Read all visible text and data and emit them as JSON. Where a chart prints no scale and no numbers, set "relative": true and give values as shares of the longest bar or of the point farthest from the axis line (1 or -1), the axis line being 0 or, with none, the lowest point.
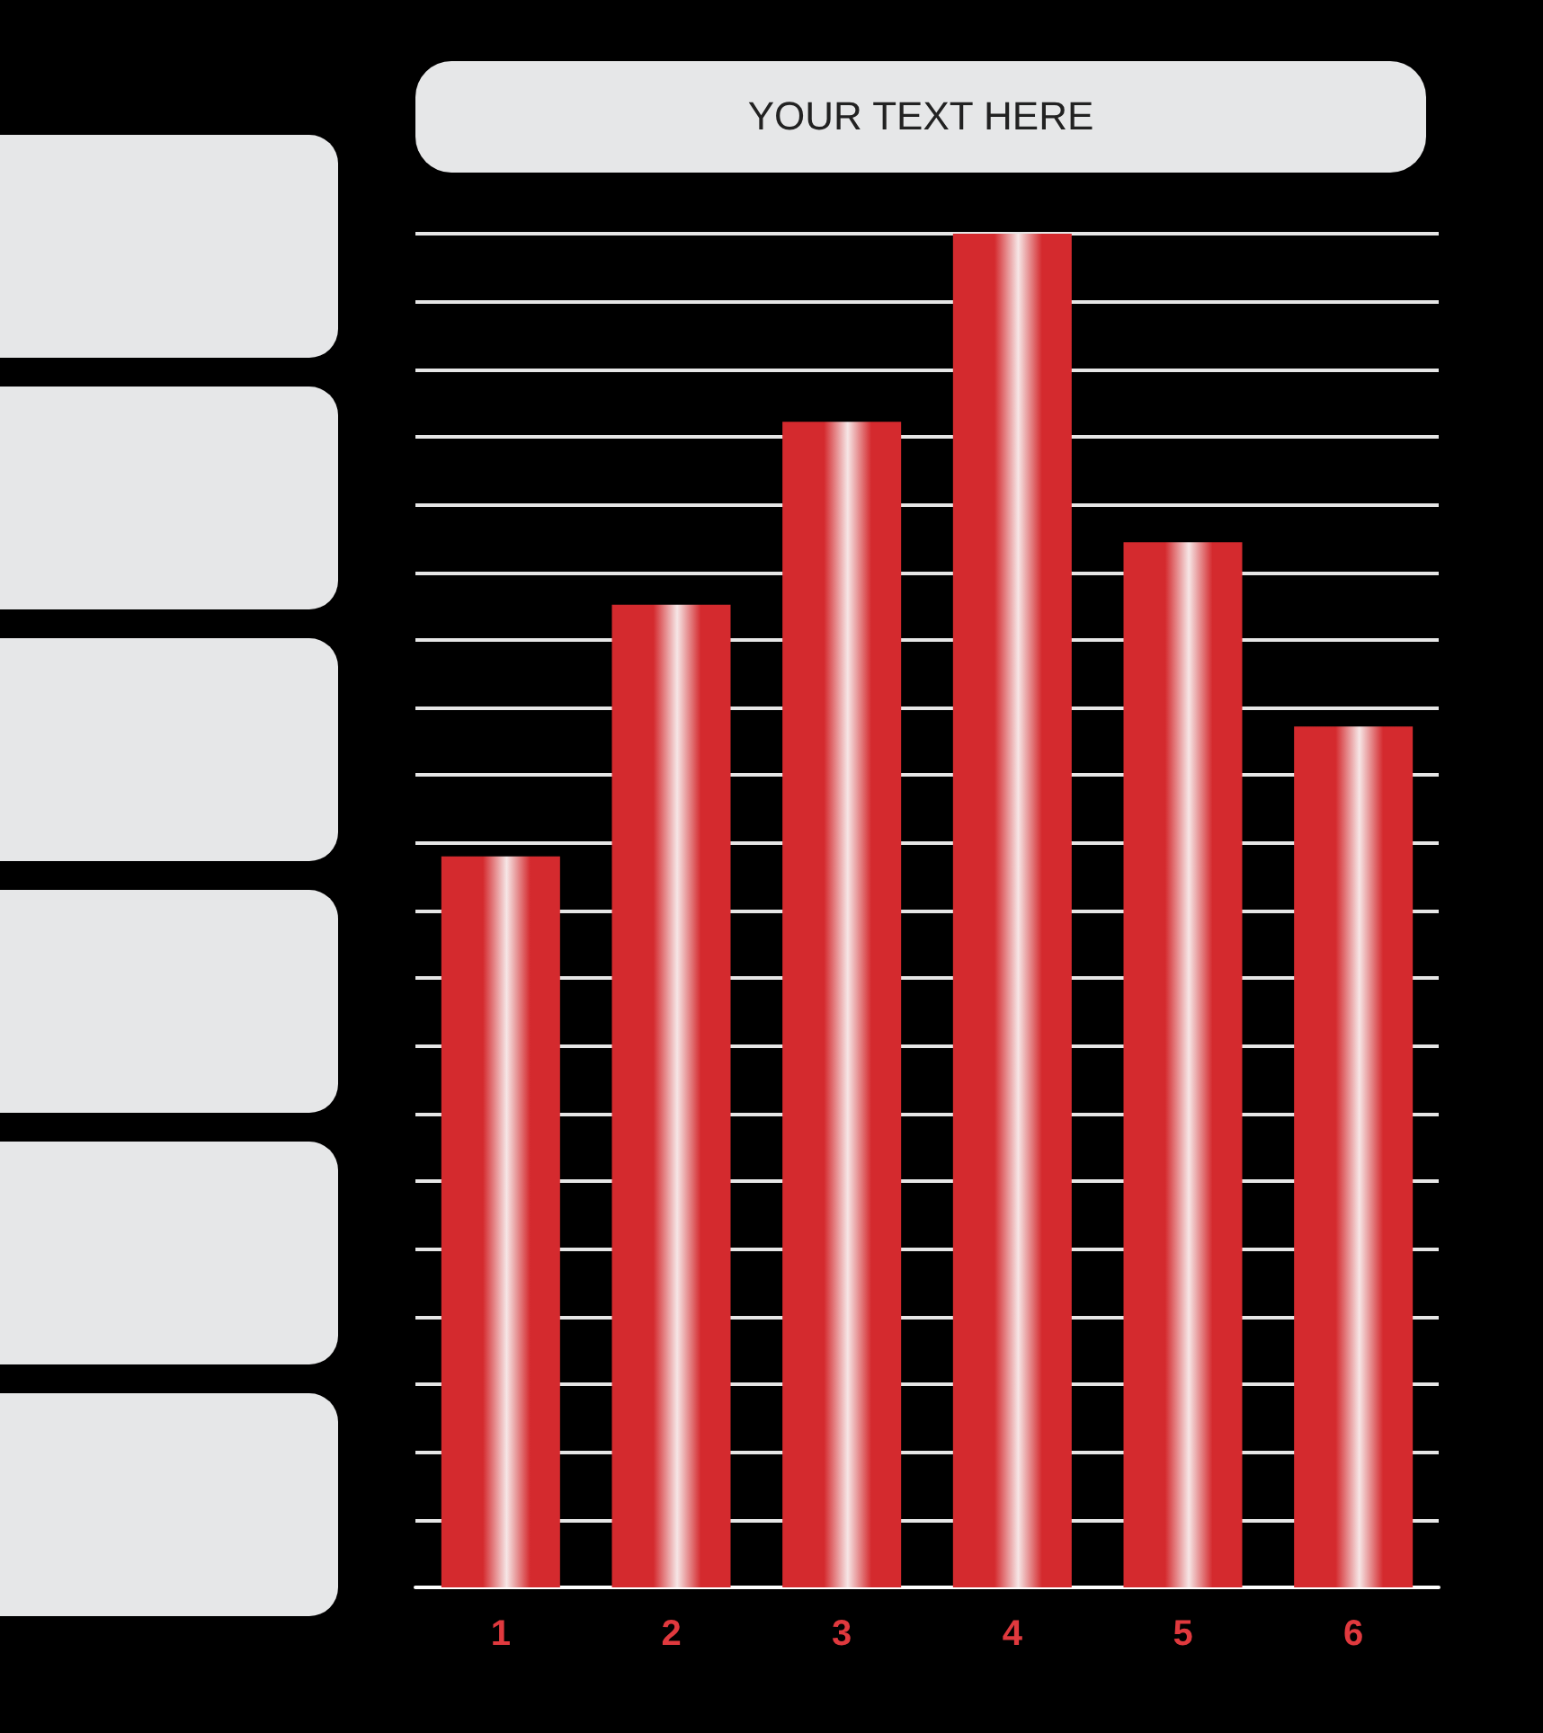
{
  "chart_data": {
    "type": "bar",
    "title": "YOUR TEXT HERE",
    "relative": true,
    "grid": "y",
    "categories": [
      "1",
      "2",
      "3",
      "4",
      "5",
      "6"
    ],
    "series": [
      {
        "color": "#d42a2e",
        "values": [
          0.54,
          0.726,
          0.861,
          1,
          0.772,
          0.636
        ]
      }
    ]
  }
}
